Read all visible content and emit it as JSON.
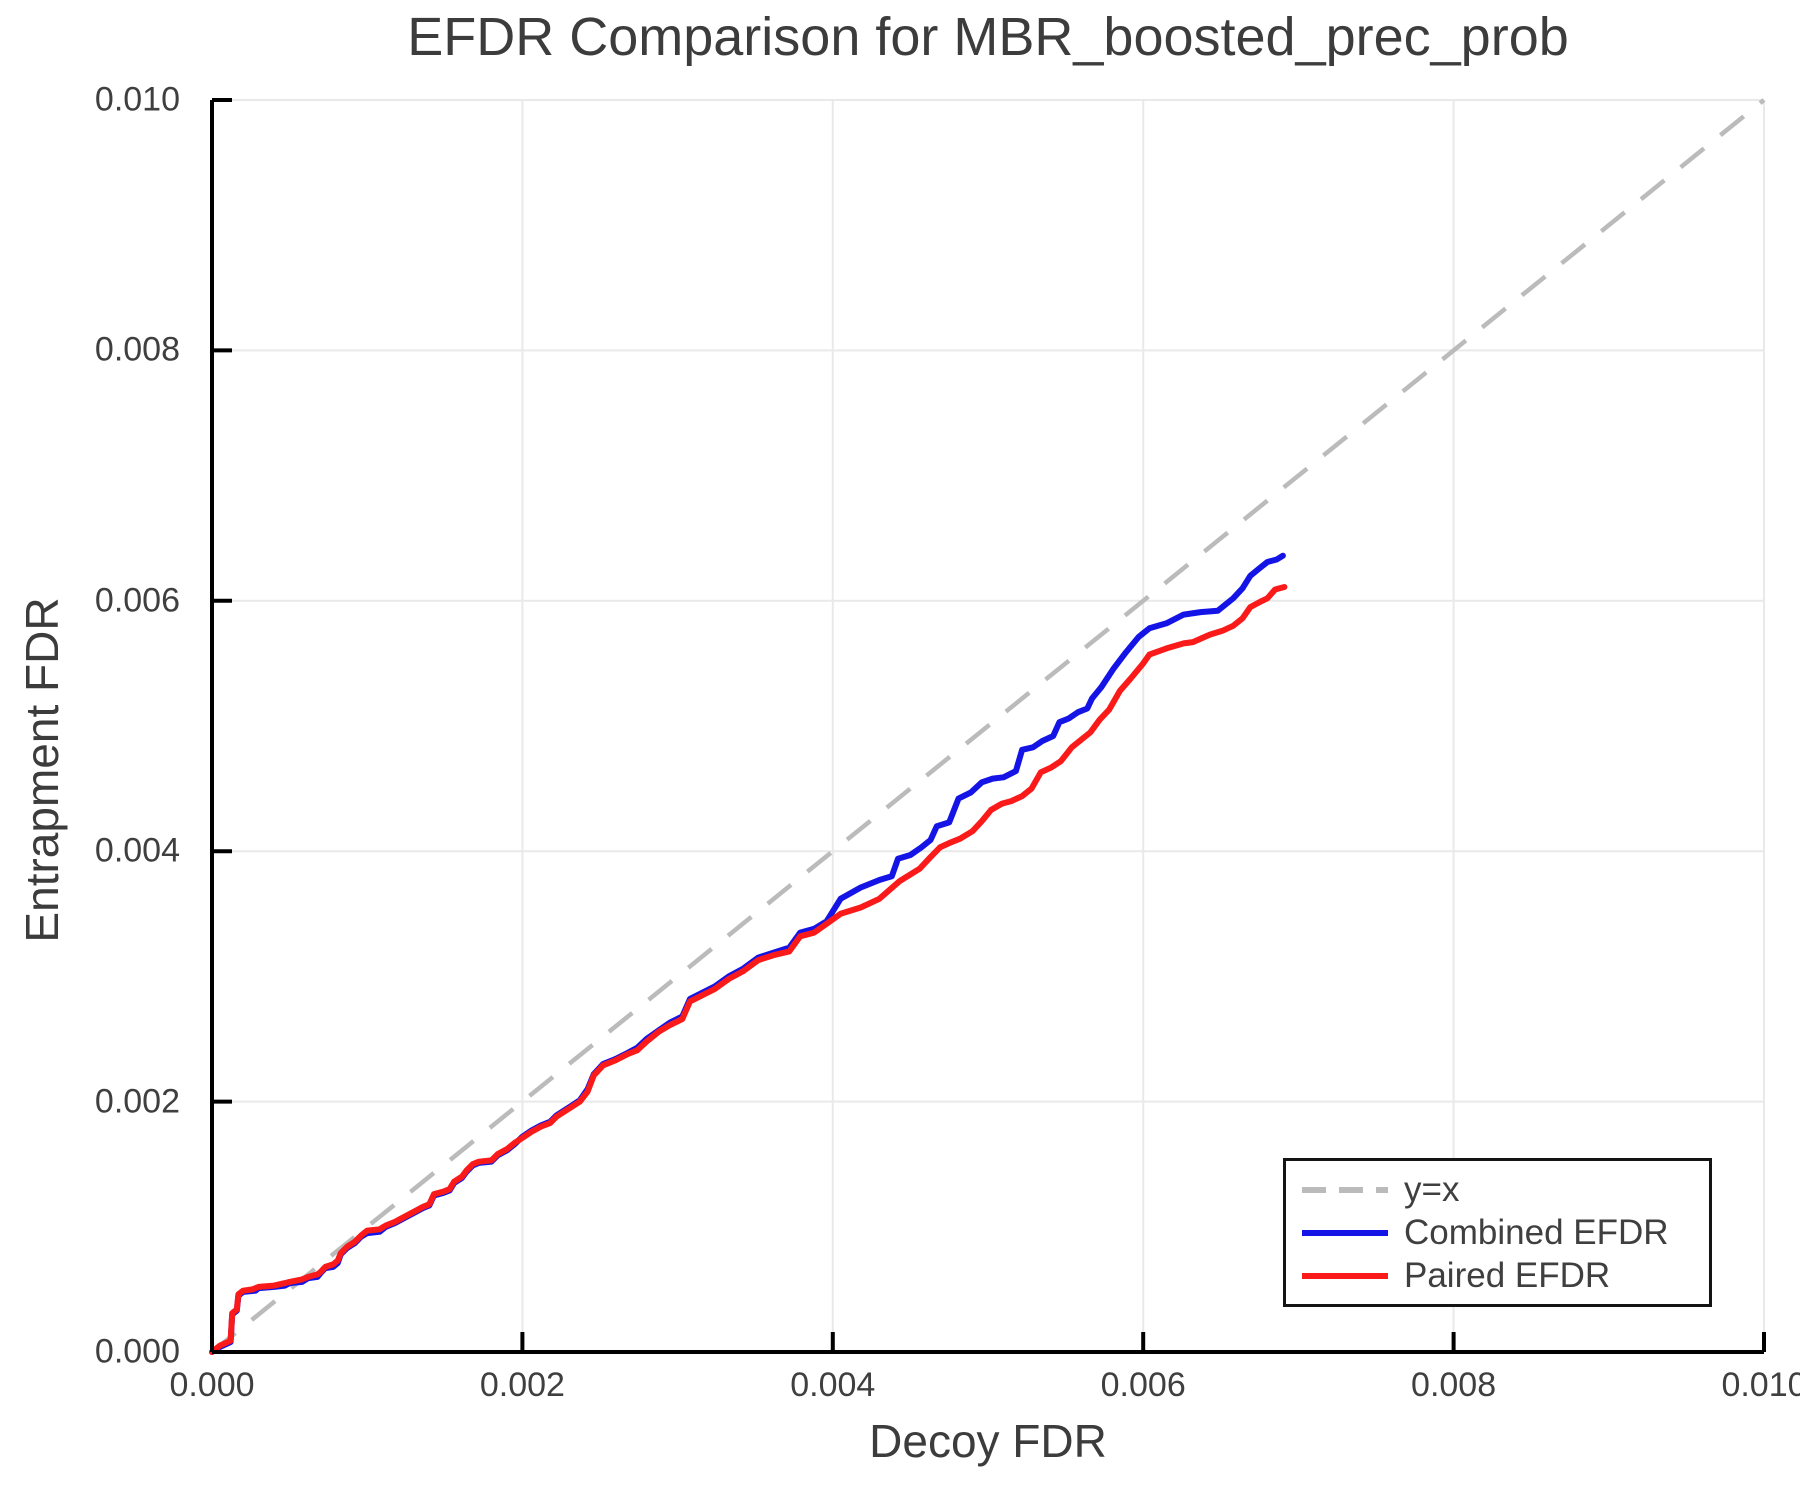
{
  "title": "EFDR Comparison for MBR_boosted_prec_prob",
  "colors": {
    "background": "#FFFFFF",
    "text": "#3C3C3C",
    "tick_text": "#3F3F3F",
    "grid": "#E9E9E9",
    "axis": "#000000",
    "reference": "#BBBBBB",
    "combined": "#1414E6",
    "paired": "#FA1A1A"
  },
  "chart_data": {
    "type": "line",
    "title": "EFDR Comparison for MBR_boosted_prec_prob",
    "xlabel": "Decoy FDR",
    "ylabel": "Entrapment FDR",
    "xlim": [
      0,
      0.01
    ],
    "ylim": [
      0,
      0.01
    ],
    "grid": true,
    "legend_position": "bottom-right",
    "x_ticks": {
      "values": [
        0,
        0.002,
        0.004,
        0.006,
        0.008,
        0.01
      ],
      "labels": [
        "0.000",
        "0.002",
        "0.004",
        "0.006",
        "0.008",
        "0.010"
      ]
    },
    "y_ticks": {
      "values": [
        0,
        0.002,
        0.004,
        0.006,
        0.008,
        0.01
      ],
      "labels": [
        "0.000",
        "0.002",
        "0.004",
        "0.006",
        "0.008",
        "0.010"
      ]
    },
    "reference_line": {
      "label": "y=x",
      "color": "#BBBBBB",
      "style": "dashed",
      "from": [
        0,
        0
      ],
      "to": [
        0.01,
        0.01
      ]
    },
    "series": [
      {
        "name": "Combined EFDR",
        "color": "#1414E6",
        "points": [
          [
            0,
            0
          ],
          [
            5e-05,
            4e-05
          ],
          [
            0.00012,
            8e-05
          ],
          [
            0.00013,
            0.0003
          ],
          [
            0.00016,
            0.00033
          ],
          [
            0.00017,
            0.00045
          ],
          [
            0.0002,
            0.00048
          ],
          [
            0.00028,
            0.00049
          ],
          [
            0.0003,
            0.00051
          ],
          [
            0.0004,
            0.00052
          ],
          [
            0.00047,
            0.00053
          ],
          [
            0.0005,
            0.00055
          ],
          [
            0.00058,
            0.00056
          ],
          [
            0.00062,
            0.00059
          ],
          [
            0.00068,
            0.0006
          ],
          [
            0.0007,
            0.00063
          ],
          [
            0.00073,
            0.00067
          ],
          [
            0.00078,
            0.00068
          ],
          [
            0.00081,
            0.00071
          ],
          [
            0.00083,
            0.00078
          ],
          [
            0.00087,
            0.00083
          ],
          [
            0.00092,
            0.00087
          ],
          [
            0.00096,
            0.00092
          ],
          [
            0.001,
            0.00095
          ],
          [
            0.00108,
            0.00096
          ],
          [
            0.00112,
            0.001
          ],
          [
            0.00118,
            0.00103
          ],
          [
            0.00124,
            0.00107
          ],
          [
            0.0013,
            0.00111
          ],
          [
            0.00136,
            0.00115
          ],
          [
            0.0014,
            0.00117
          ],
          [
            0.00143,
            0.00125
          ],
          [
            0.00149,
            0.00127
          ],
          [
            0.00153,
            0.00129
          ],
          [
            0.00156,
            0.00135
          ],
          [
            0.00161,
            0.00139
          ],
          [
            0.00164,
            0.00144
          ],
          [
            0.00168,
            0.00149
          ],
          [
            0.00172,
            0.00151
          ],
          [
            0.0018,
            0.00152
          ],
          [
            0.00184,
            0.00157
          ],
          [
            0.0019,
            0.00161
          ],
          [
            0.00195,
            0.00166
          ],
          [
            0.002,
            0.00172
          ],
          [
            0.00206,
            0.00177
          ],
          [
            0.00212,
            0.00181
          ],
          [
            0.00218,
            0.00184
          ],
          [
            0.00222,
            0.00189
          ],
          [
            0.00227,
            0.00193
          ],
          [
            0.00232,
            0.00197
          ],
          [
            0.00237,
            0.00201
          ],
          [
            0.00242,
            0.0021
          ],
          [
            0.00246,
            0.00222
          ],
          [
            0.00252,
            0.0023
          ],
          [
            0.0026,
            0.00234
          ],
          [
            0.00268,
            0.00239
          ],
          [
            0.00274,
            0.00243
          ],
          [
            0.0028,
            0.0025
          ],
          [
            0.00288,
            0.00257
          ],
          [
            0.00295,
            0.00263
          ],
          [
            0.00303,
            0.00268
          ],
          [
            0.00308,
            0.00282
          ],
          [
            0.00316,
            0.00287
          ],
          [
            0.00324,
            0.00292
          ],
          [
            0.00333,
            0.003
          ],
          [
            0.00342,
            0.00306
          ],
          [
            0.00352,
            0.00315
          ],
          [
            0.00362,
            0.00319
          ],
          [
            0.00372,
            0.00323
          ],
          [
            0.00379,
            0.00335
          ],
          [
            0.00388,
            0.00338
          ],
          [
            0.00396,
            0.00344
          ],
          [
            0.00405,
            0.00362
          ],
          [
            0.00418,
            0.00371
          ],
          [
            0.0043,
            0.00377
          ],
          [
            0.00438,
            0.0038
          ],
          [
            0.00442,
            0.00394
          ],
          [
            0.0045,
            0.00397
          ],
          [
            0.00457,
            0.00403
          ],
          [
            0.00463,
            0.00409
          ],
          [
            0.00467,
            0.0042
          ],
          [
            0.00475,
            0.00423
          ],
          [
            0.00481,
            0.00442
          ],
          [
            0.00489,
            0.00447
          ],
          [
            0.00496,
            0.00455
          ],
          [
            0.00503,
            0.00458
          ],
          [
            0.0051,
            0.00459
          ],
          [
            0.00518,
            0.00464
          ],
          [
            0.00522,
            0.00481
          ],
          [
            0.00529,
            0.00483
          ],
          [
            0.00535,
            0.00488
          ],
          [
            0.00542,
            0.00492
          ],
          [
            0.00546,
            0.00503
          ],
          [
            0.00552,
            0.00506
          ],
          [
            0.00558,
            0.00511
          ],
          [
            0.00564,
            0.00514
          ],
          [
            0.00567,
            0.00522
          ],
          [
            0.00573,
            0.00531
          ],
          [
            0.00581,
            0.00546
          ],
          [
            0.00589,
            0.00559
          ],
          [
            0.00597,
            0.00571
          ],
          [
            0.00604,
            0.00578
          ],
          [
            0.00615,
            0.00582
          ],
          [
            0.00626,
            0.00589
          ],
          [
            0.00637,
            0.00591
          ],
          [
            0.00648,
            0.00592
          ],
          [
            0.00658,
            0.00602
          ],
          [
            0.00664,
            0.0061
          ],
          [
            0.00669,
            0.0062
          ],
          [
            0.00675,
            0.00626
          ],
          [
            0.0068,
            0.00631
          ],
          [
            0.00686,
            0.00633
          ],
          [
            0.0069,
            0.00636
          ]
        ]
      },
      {
        "name": "Paired EFDR",
        "color": "#FA1A1A",
        "points": [
          [
            0,
            0
          ],
          [
            5e-05,
            5e-05
          ],
          [
            0.00012,
            9e-05
          ],
          [
            0.00013,
            0.00031
          ],
          [
            0.00016,
            0.00034
          ],
          [
            0.00017,
            0.00046
          ],
          [
            0.0002,
            0.00049
          ],
          [
            0.00026,
            0.0005
          ],
          [
            0.0003,
            0.00052
          ],
          [
            0.0004,
            0.00053
          ],
          [
            0.00047,
            0.00055
          ],
          [
            0.0005,
            0.00056
          ],
          [
            0.00058,
            0.00058
          ],
          [
            0.00062,
            0.0006
          ],
          [
            0.00068,
            0.00062
          ],
          [
            0.0007,
            0.00064
          ],
          [
            0.00073,
            0.00068
          ],
          [
            0.00078,
            0.0007
          ],
          [
            0.00081,
            0.00073
          ],
          [
            0.00083,
            0.00079
          ],
          [
            0.00087,
            0.00084
          ],
          [
            0.00092,
            0.00088
          ],
          [
            0.00096,
            0.00093
          ],
          [
            0.001,
            0.00097
          ],
          [
            0.00108,
            0.00098
          ],
          [
            0.00112,
            0.00101
          ],
          [
            0.00118,
            0.00104
          ],
          [
            0.00124,
            0.00108
          ],
          [
            0.0013,
            0.00112
          ],
          [
            0.00136,
            0.00116
          ],
          [
            0.0014,
            0.00118
          ],
          [
            0.00143,
            0.00126
          ],
          [
            0.00149,
            0.00128
          ],
          [
            0.00153,
            0.0013
          ],
          [
            0.00156,
            0.00136
          ],
          [
            0.00161,
            0.0014
          ],
          [
            0.00164,
            0.00145
          ],
          [
            0.00168,
            0.0015
          ],
          [
            0.00172,
            0.00152
          ],
          [
            0.0018,
            0.00153
          ],
          [
            0.00184,
            0.00158
          ],
          [
            0.0019,
            0.00162
          ],
          [
            0.00195,
            0.00167
          ],
          [
            0.002,
            0.00171
          ],
          [
            0.00206,
            0.00176
          ],
          [
            0.00212,
            0.0018
          ],
          [
            0.00218,
            0.00183
          ],
          [
            0.00222,
            0.00188
          ],
          [
            0.00227,
            0.00192
          ],
          [
            0.00232,
            0.00196
          ],
          [
            0.00237,
            0.002
          ],
          [
            0.00242,
            0.00208
          ],
          [
            0.00246,
            0.00221
          ],
          [
            0.00252,
            0.00229
          ],
          [
            0.0026,
            0.00233
          ],
          [
            0.00268,
            0.00238
          ],
          [
            0.00274,
            0.00241
          ],
          [
            0.0028,
            0.00248
          ],
          [
            0.00288,
            0.00256
          ],
          [
            0.00295,
            0.00261
          ],
          [
            0.00303,
            0.00266
          ],
          [
            0.00308,
            0.0028
          ],
          [
            0.00316,
            0.00285
          ],
          [
            0.00324,
            0.0029
          ],
          [
            0.00333,
            0.00298
          ],
          [
            0.00342,
            0.00304
          ],
          [
            0.00352,
            0.00313
          ],
          [
            0.00362,
            0.00317
          ],
          [
            0.00372,
            0.0032
          ],
          [
            0.00379,
            0.00332
          ],
          [
            0.00388,
            0.00335
          ],
          [
            0.00396,
            0.00342
          ],
          [
            0.00405,
            0.0035
          ],
          [
            0.00418,
            0.00355
          ],
          [
            0.0043,
            0.00362
          ],
          [
            0.00443,
            0.00376
          ],
          [
            0.00456,
            0.00386
          ],
          [
            0.00462,
            0.00394
          ],
          [
            0.00469,
            0.00403
          ],
          [
            0.00476,
            0.00407
          ],
          [
            0.00482,
            0.0041
          ],
          [
            0.0049,
            0.00416
          ],
          [
            0.00496,
            0.00424
          ],
          [
            0.00502,
            0.00433
          ],
          [
            0.00509,
            0.00438
          ],
          [
            0.00515,
            0.0044
          ],
          [
            0.00522,
            0.00444
          ],
          [
            0.00528,
            0.0045
          ],
          [
            0.00534,
            0.00463
          ],
          [
            0.00541,
            0.00467
          ],
          [
            0.00547,
            0.00472
          ],
          [
            0.00554,
            0.00483
          ],
          [
            0.0056,
            0.00489
          ],
          [
            0.00566,
            0.00495
          ],
          [
            0.00572,
            0.00505
          ],
          [
            0.00578,
            0.00513
          ],
          [
            0.00585,
            0.00528
          ],
          [
            0.00592,
            0.00538
          ],
          [
            0.006,
            0.0055
          ],
          [
            0.00604,
            0.00557
          ],
          [
            0.00615,
            0.00562
          ],
          [
            0.00626,
            0.00566
          ],
          [
            0.00632,
            0.00567
          ],
          [
            0.00643,
            0.00573
          ],
          [
            0.00651,
            0.00576
          ],
          [
            0.00658,
            0.0058
          ],
          [
            0.00664,
            0.00586
          ],
          [
            0.00669,
            0.00595
          ],
          [
            0.00675,
            0.00599
          ],
          [
            0.0068,
            0.00602
          ],
          [
            0.00685,
            0.00609
          ],
          [
            0.00691,
            0.00611
          ]
        ]
      }
    ]
  }
}
